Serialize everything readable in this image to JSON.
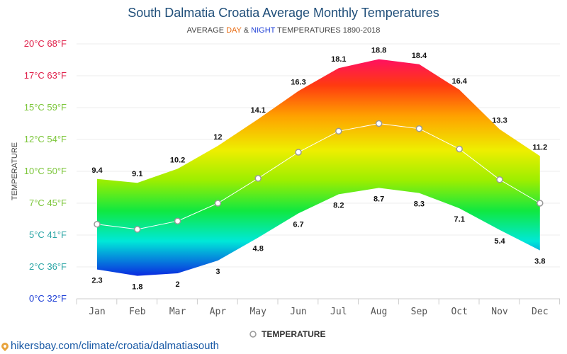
{
  "chart_data": {
    "type": "area",
    "title": "South Dalmatia Croatia Average Monthly Temperatures",
    "subtitle": {
      "prefix": "AVERAGE ",
      "day": "DAY",
      "mid": " & ",
      "night": "NIGHT",
      "suffix": " TEMPERATURES 1890-2018"
    },
    "ylabel": "TEMPERATURE",
    "ylim": [
      0,
      20
    ],
    "y_ticks": [
      {
        "value": 0,
        "label": "0°C 32°F",
        "color": "#1e3fd6"
      },
      {
        "value": 2.5,
        "label": "2°C 36°F",
        "color": "#2aa5a5"
      },
      {
        "value": 5,
        "label": "5°C 41°F",
        "color": "#2aa5a5"
      },
      {
        "value": 7.5,
        "label": "7°C 45°F",
        "color": "#7cc63a"
      },
      {
        "value": 10,
        "label": "10°C 50°F",
        "color": "#7cc63a"
      },
      {
        "value": 12.5,
        "label": "12°C 54°F",
        "color": "#7cc63a"
      },
      {
        "value": 15,
        "label": "15°C 59°F",
        "color": "#7cc63a"
      },
      {
        "value": 17.5,
        "label": "17°C 63°F",
        "color": "#e0204a"
      },
      {
        "value": 20,
        "label": "20°C 68°F",
        "color": "#e0204a"
      }
    ],
    "categories": [
      "Jan",
      "Feb",
      "Mar",
      "Apr",
      "May",
      "Jun",
      "Jul",
      "Aug",
      "Sep",
      "Oct",
      "Nov",
      "Dec"
    ],
    "series": [
      {
        "key": "day",
        "values": [
          9.4,
          9.1,
          10.2,
          12,
          14.1,
          16.3,
          18.1,
          18.8,
          18.4,
          16.4,
          13.3,
          11.2
        ],
        "labels": [
          "9.4",
          "9.1",
          "10.2",
          "12",
          "14.1",
          "16.3",
          "18.1",
          "18.8",
          "18.4",
          "16.4",
          "13.3",
          "11.2"
        ]
      },
      {
        "key": "night",
        "values": [
          2.3,
          1.8,
          2,
          3,
          4.8,
          6.7,
          8.2,
          8.7,
          8.3,
          7.1,
          5.4,
          3.8
        ],
        "labels": [
          "2.3",
          "1.8",
          "2",
          "3",
          "4.8",
          "6.7",
          "8.2",
          "8.7",
          "8.3",
          "7.1",
          "5.4",
          "3.8"
        ]
      },
      {
        "key": "average",
        "name": "TEMPERATURE",
        "values": [
          5.85,
          5.45,
          6.1,
          7.5,
          9.45,
          11.5,
          13.15,
          13.75,
          13.35,
          11.75,
          9.35,
          7.5
        ]
      }
    ],
    "grid": true,
    "legend_position": "bottom-center",
    "colors": {
      "title": "#1f4e79",
      "day_word": "#e86a10",
      "night_word": "#1e3fd6",
      "average_line": "#ffffff",
      "gradient": [
        "#0a2ae0",
        "#00e8e0",
        "#00ee50",
        "#aaee00",
        "#eeee00",
        "#ffb000",
        "#ff4000",
        "#ff1060"
      ]
    }
  },
  "footer": {
    "source_url": "hikersbay.com/climate/croatia/dalmatiasouth",
    "pin_icon": "location-pin-icon"
  }
}
